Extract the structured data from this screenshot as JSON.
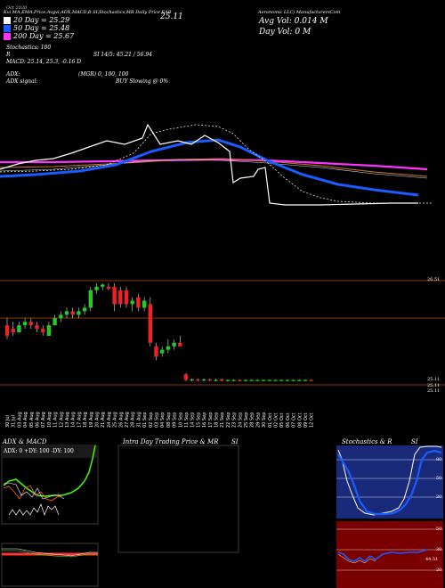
{
  "header": {
    "left_text": "Kvi MA,EMA,Price,Avgvl,ADX,MACD,B SI,Stochastics,MR Daily Price EAB",
    "right_text": "Aeronomic LLC) ManufacturersCom",
    "date_text": "Oct 2020",
    "price_label": "25.11",
    "avg_vol": "Avg Vol: 0.014  M",
    "day_vol": "Day Vol: 0  M"
  },
  "legend": [
    {
      "label": "20  Day = 25.29",
      "color": "#ffffff"
    },
    {
      "label": "50  Day = 25.48",
      "color": "#1a5cff"
    },
    {
      "label": "200  Day = 25.67",
      "color": "#ff33ff"
    }
  ],
  "indicators": {
    "stochastics": "Stochastics: 100",
    "r": "R",
    "si": "SI 14/5: 45.21 / 56.94",
    "macd": "MACD: 25.14,  25.3,  -0.16  D",
    "adx": "ADX:",
    "adx_val": "(MGR) 0,  100,  100",
    "adx_signal": "ADX  signal:",
    "buy_signal": "BUY Slowing @ 0%"
  },
  "price_axis": {
    "high": "26.51",
    "low_a": "25.11",
    "low_b": "25.11",
    "low_c": "25.11"
  },
  "dates": [
    "30 Jul",
    "31 Jul",
    "03 Aug",
    "04 Aug",
    "05 Aug",
    "06 Aug",
    "07 Aug",
    "10 Aug",
    "11 Aug",
    "12 Aug",
    "13 Aug",
    "14 Aug",
    "17 Aug",
    "18 Aug",
    "19 Aug",
    "20 Aug",
    "21 Aug",
    "24 Aug",
    "25 Aug",
    "26 Aug",
    "27 Aug",
    "28 Aug",
    "31 Aug",
    "01 Sep",
    "02 Sep",
    "03 Sep",
    "04 Sep",
    "08 Sep",
    "09 Sep",
    "10 Sep",
    "11 Sep",
    "14 Sep",
    "15 Sep",
    "16 Sep",
    "17 Sep",
    "18 Sep",
    "21 Sep",
    "22 Sep",
    "23 Sep",
    "24 Sep",
    "25 Sep",
    "28 Sep",
    "29 Sep",
    "30 Sep",
    "01 Oct",
    "02 Oct",
    "05 Oct",
    "06 Oct",
    "07 Oct",
    "08 Oct",
    "09 Oct",
    "12 Oct"
  ],
  "panels": {
    "adx_title": "ADX  & MACD",
    "adx_readout": "ADX: 0   +DY: 100   -DY: 100",
    "intra_title": "Intra  Day Trading Price  & MR",
    "intra_si": "SI",
    "stoch_title": "Stochastics & R",
    "stoch_si": "SI",
    "stoch_levels": [
      "80",
      "50",
      "20"
    ],
    "si_levels": [
      "50",
      "30",
      "20"
    ],
    "si_now": "44.51"
  },
  "chart_data": {
    "type": "candlestick",
    "candles": [
      {
        "o": 25.9,
        "h": 26.0,
        "l": 25.7,
        "c": 25.75
      },
      {
        "o": 25.85,
        "h": 25.95,
        "l": 25.75,
        "c": 25.8
      },
      {
        "o": 25.8,
        "h": 25.95,
        "l": 25.8,
        "c": 25.9
      },
      {
        "o": 25.9,
        "h": 26.0,
        "l": 25.85,
        "c": 25.95
      },
      {
        "o": 25.95,
        "h": 26.0,
        "l": 25.85,
        "c": 25.9
      },
      {
        "o": 25.9,
        "h": 25.95,
        "l": 25.8,
        "c": 25.85
      },
      {
        "o": 25.85,
        "h": 25.9,
        "l": 25.75,
        "c": 25.8
      },
      {
        "o": 25.75,
        "h": 25.95,
        "l": 25.75,
        "c": 25.9
      },
      {
        "o": 25.9,
        "h": 26.05,
        "l": 25.9,
        "c": 26.0
      },
      {
        "o": 26.0,
        "h": 26.1,
        "l": 25.95,
        "c": 26.05
      },
      {
        "o": 26.05,
        "h": 26.15,
        "l": 26.0,
        "c": 26.1
      },
      {
        "o": 26.1,
        "h": 26.15,
        "l": 26.0,
        "c": 26.05
      },
      {
        "o": 26.05,
        "h": 26.15,
        "l": 26.0,
        "c": 26.1
      },
      {
        "o": 26.1,
        "h": 26.2,
        "l": 26.05,
        "c": 26.15
      },
      {
        "o": 26.15,
        "h": 26.45,
        "l": 26.1,
        "c": 26.4
      },
      {
        "o": 26.4,
        "h": 26.5,
        "l": 26.35,
        "c": 26.45
      },
      {
        "o": 26.45,
        "h": 26.5,
        "l": 26.4,
        "c": 26.48
      },
      {
        "o": 26.45,
        "h": 26.5,
        "l": 26.4,
        "c": 26.42
      },
      {
        "o": 26.45,
        "h": 26.5,
        "l": 26.1,
        "c": 26.2
      },
      {
        "o": 26.4,
        "h": 26.45,
        "l": 26.15,
        "c": 26.2
      },
      {
        "o": 26.4,
        "h": 26.45,
        "l": 26.15,
        "c": 26.2
      },
      {
        "o": 26.2,
        "h": 26.3,
        "l": 26.1,
        "c": 26.25
      },
      {
        "o": 26.3,
        "h": 26.35,
        "l": 26.1,
        "c": 26.15
      },
      {
        "o": 26.15,
        "h": 26.3,
        "l": 26.1,
        "c": 26.25
      },
      {
        "o": 26.2,
        "h": 26.3,
        "l": 25.6,
        "c": 25.65
      },
      {
        "o": 25.6,
        "h": 25.65,
        "l": 25.4,
        "c": 25.45
      },
      {
        "o": 25.5,
        "h": 25.6,
        "l": 25.45,
        "c": 25.55
      },
      {
        "o": 25.55,
        "h": 25.7,
        "l": 25.5,
        "c": 25.6
      },
      {
        "o": 25.6,
        "h": 25.7,
        "l": 25.55,
        "c": 25.65
      },
      {
        "o": 25.65,
        "h": 25.75,
        "l": 25.6,
        "c": 25.6
      },
      {
        "o": 25.2,
        "h": 25.22,
        "l": 25.1,
        "c": 25.12
      },
      {
        "o": 25.12,
        "h": 25.14,
        "l": 25.1,
        "c": 25.13
      },
      {
        "o": 25.13,
        "h": 25.14,
        "l": 25.1,
        "c": 25.12
      },
      {
        "o": 25.12,
        "h": 25.14,
        "l": 25.1,
        "c": 25.13
      },
      {
        "o": 25.13,
        "h": 25.14,
        "l": 25.1,
        "c": 25.12
      },
      {
        "o": 25.12,
        "h": 25.14,
        "l": 25.1,
        "c": 25.12
      },
      {
        "o": 25.13,
        "h": 25.14,
        "l": 25.1,
        "c": 25.11
      },
      {
        "o": 25.11,
        "h": 25.13,
        "l": 25.1,
        "c": 25.12
      },
      {
        "o": 25.12,
        "h": 25.13,
        "l": 25.1,
        "c": 25.12
      },
      {
        "o": 25.12,
        "h": 25.13,
        "l": 25.1,
        "c": 25.11
      },
      {
        "o": 25.11,
        "h": 25.13,
        "l": 25.1,
        "c": 25.12
      },
      {
        "o": 25.12,
        "h": 25.13,
        "l": 25.11,
        "c": 25.12
      },
      {
        "o": 25.12,
        "h": 25.13,
        "l": 25.11,
        "c": 25.12
      },
      {
        "o": 25.12,
        "h": 25.13,
        "l": 25.11,
        "c": 25.12
      },
      {
        "o": 25.12,
        "h": 25.13,
        "l": 25.11,
        "c": 25.12
      },
      {
        "o": 25.12,
        "h": 25.13,
        "l": 25.11,
        "c": 25.12
      },
      {
        "o": 25.12,
        "h": 25.13,
        "l": 25.11,
        "c": 25.12
      },
      {
        "o": 25.12,
        "h": 25.13,
        "l": 25.11,
        "c": 25.12
      },
      {
        "o": 25.12,
        "h": 25.13,
        "l": 25.11,
        "c": 25.12
      },
      {
        "o": 25.12,
        "h": 25.13,
        "l": 25.11,
        "c": 25.12
      },
      {
        "o": 25.12,
        "h": 25.13,
        "l": 25.11,
        "c": 25.12
      },
      {
        "o": 25.12,
        "h": 25.13,
        "l": 25.11,
        "c": 25.11
      }
    ],
    "ylim": [
      25.05,
      26.6
    ],
    "colors": {
      "up": "#22cc22",
      "down": "#ee2222",
      "ma20": "#ffffff",
      "ma50": "#1a5cff",
      "ma200": "#ff33ff"
    }
  }
}
